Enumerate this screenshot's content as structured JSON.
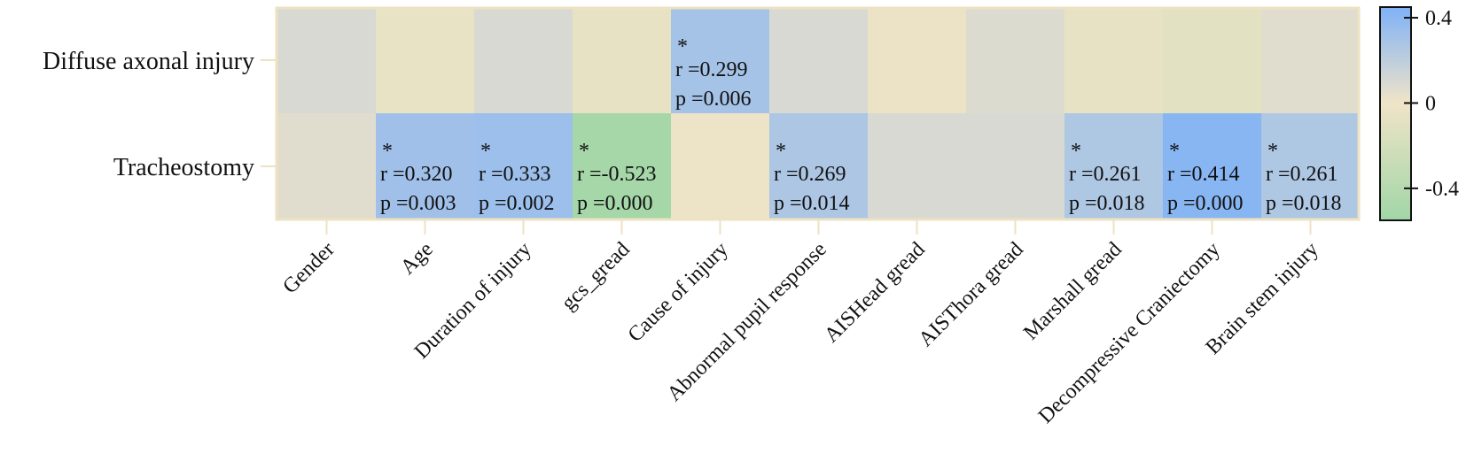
{
  "chart_data": {
    "type": "heatmap",
    "rows": [
      "Diffuse axonal injury",
      "Tracheostomy"
    ],
    "columns": [
      "Gender",
      "Age",
      "Duration of injury",
      "gcs_gread",
      "Cause of injury",
      "Abnormal pupil response",
      "AISHead gread",
      "AISThora gread",
      "Marshall gread",
      "Decompressive Craniectomy",
      "Brain stem injury"
    ],
    "values": [
      [
        0.1,
        -0.05,
        0.1,
        -0.06,
        0.299,
        0.1,
        -0.03,
        0.08,
        -0.06,
        -0.1,
        0.06
      ],
      [
        0.06,
        0.32,
        0.333,
        -0.523,
        -0.02,
        0.269,
        0.1,
        0.1,
        0.261,
        0.414,
        0.261
      ]
    ],
    "annotations": [
      {
        "row": 0,
        "col": 4,
        "star": "*",
        "r": "r =0.299",
        "p": "p =0.006"
      },
      {
        "row": 1,
        "col": 1,
        "star": "*",
        "r": "r =0.320",
        "p": "p =0.003"
      },
      {
        "row": 1,
        "col": 2,
        "star": "*",
        "r": "r =0.333",
        "p": "p =0.002"
      },
      {
        "row": 1,
        "col": 3,
        "star": "*",
        "r": "r =-0.523",
        "p": "p =0.000"
      },
      {
        "row": 1,
        "col": 5,
        "star": "*",
        "r": "r =0.269",
        "p": "p =0.014"
      },
      {
        "row": 1,
        "col": 8,
        "star": "*",
        "r": "r =0.261",
        "p": "p =0.018"
      },
      {
        "row": 1,
        "col": 9,
        "star": "*",
        "r": "r =0.414",
        "p": "p =0.000"
      },
      {
        "row": 1,
        "col": 10,
        "star": "*",
        "r": "r =0.261",
        "p": "p =0.018"
      }
    ],
    "colorbar": {
      "ticks": [
        0.4,
        0,
        -0.4
      ],
      "tick_labels": [
        "0.4",
        "0",
        "-0.4"
      ],
      "range": [
        -0.55,
        0.45
      ],
      "colors": {
        "high": "#7fb2f7",
        "mid": "#f0e4c8",
        "low": "#a1d6a6"
      }
    },
    "frame_color": "#ede2c2",
    "legend": "right"
  }
}
